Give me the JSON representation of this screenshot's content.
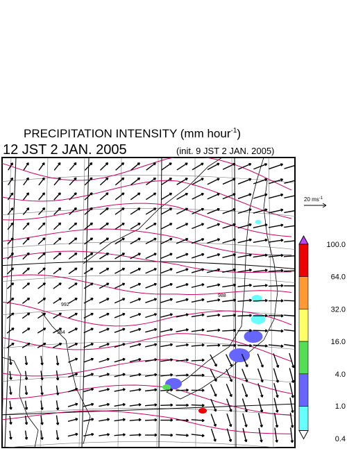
{
  "header": {
    "title": "PRECIPITATION INTENSITY (mm hour",
    "title_exponent": "-1",
    "title_close": ")",
    "valid_time": "12 JST 2 JAN. 2005",
    "init_time": "(init. 9 JST 2 JAN. 2005)"
  },
  "map": {
    "scale_label": "20 ms",
    "scale_exponent": "-1",
    "isobar_labels": [
      "992",
      "984",
      "988"
    ]
  },
  "colorbar": {
    "labels": [
      "100.0",
      "64.0",
      "32.0",
      "16.0",
      "4.0",
      "1.0",
      "0.4"
    ],
    "colors": [
      "#c040ff",
      "#ee0000",
      "#ff9933",
      "#ffff66",
      "#55dd55",
      "#6666ff",
      "#66ffff",
      "#ffffff"
    ]
  }
}
